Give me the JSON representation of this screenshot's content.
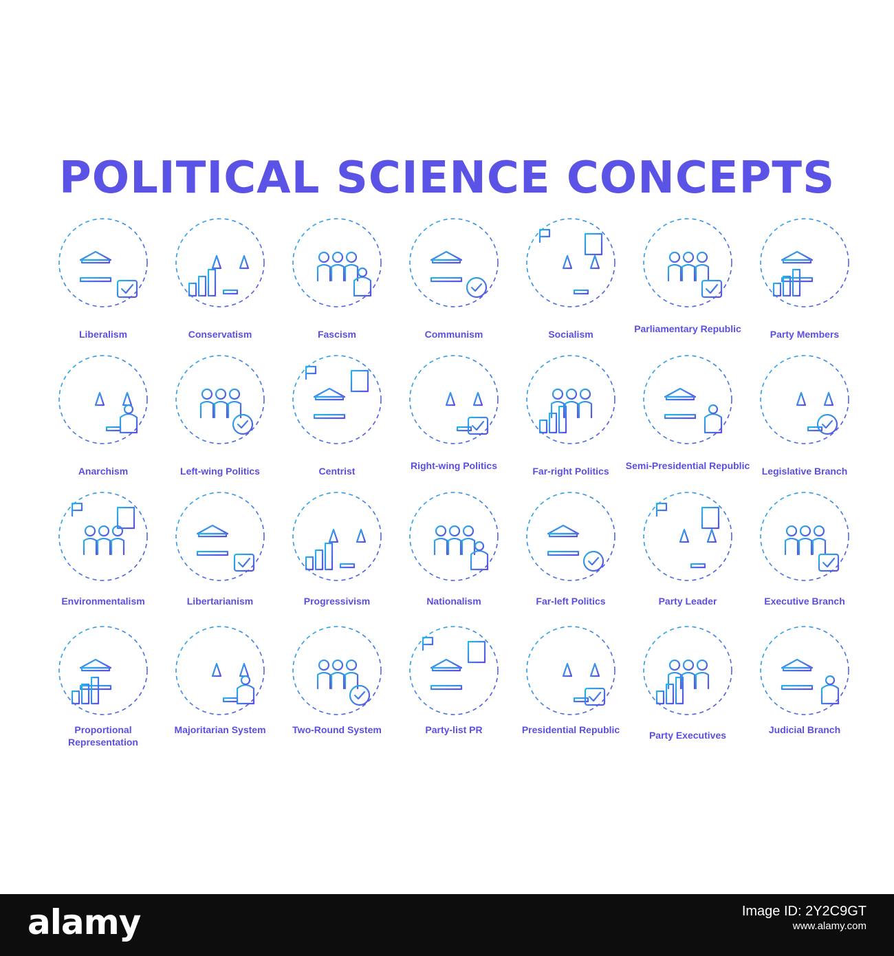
{
  "title": "POLITICAL SCIENCE CONCEPTS",
  "colors": {
    "title": "#5b52e6",
    "icon_start": "#27b4e8",
    "icon_end": "#5a4fe0",
    "label": "#5a4fe0",
    "footer_bg": "#0d0d0d"
  },
  "rows": [
    [
      {
        "label": "Liberalism",
        "icon": "liberalism-icon"
      },
      {
        "label": "Conservatism",
        "icon": "conservatism-icon"
      },
      {
        "label": "Fascism",
        "icon": "fascism-icon"
      },
      {
        "label": "Communism",
        "icon": "communism-icon"
      },
      {
        "label": "Socialism",
        "icon": "socialism-icon"
      },
      {
        "label": "Parliamentary Republic",
        "icon": "parliamentary-republic-icon"
      },
      {
        "label": "Party Members",
        "icon": "party-members-icon"
      }
    ],
    [
      {
        "label": "Anarchism",
        "icon": "anarchism-icon"
      },
      {
        "label": "Left-wing Politics",
        "icon": "left-wing-politics-icon"
      },
      {
        "label": "Centrist",
        "icon": "centrist-icon"
      },
      {
        "label": "Right-wing Politics",
        "icon": "right-wing-politics-icon"
      },
      {
        "label": "Far-right Politics",
        "icon": "far-right-politics-icon"
      },
      {
        "label": "Semi-Presidential Republic",
        "icon": "semi-presidential-republic-icon"
      },
      {
        "label": "Legislative Branch",
        "icon": "legislative-branch-icon"
      }
    ],
    [
      {
        "label": "Environmentalism",
        "icon": "environmentalism-icon"
      },
      {
        "label": "Libertarianism",
        "icon": "libertarianism-icon"
      },
      {
        "label": "Progressivism",
        "icon": "progressivism-icon"
      },
      {
        "label": "Nationalism",
        "icon": "nationalism-icon"
      },
      {
        "label": "Far-left Politics",
        "icon": "far-left-politics-icon"
      },
      {
        "label": "Party Leader",
        "icon": "party-leader-icon"
      },
      {
        "label": "Executive Branch",
        "icon": "executive-branch-icon"
      }
    ],
    [
      {
        "label": "Proportional Representation",
        "icon": "proportional-representation-icon"
      },
      {
        "label": "Majoritarian System",
        "icon": "majoritarian-system-icon"
      },
      {
        "label": "Two-Round System",
        "icon": "two-round-system-icon"
      },
      {
        "label": "Party-list PR",
        "icon": "party-list-pr-icon"
      },
      {
        "label": "Presidential Republic",
        "icon": "presidential-republic-icon"
      },
      {
        "label": "Party Executives",
        "icon": "party-executives-icon"
      },
      {
        "label": "Judicial Branch",
        "icon": "judicial-branch-icon"
      }
    ]
  ],
  "footer": {
    "brand": "alamy",
    "image_id_line": "Image ID: 2Y2C9GT",
    "site": "www.alamy.com"
  }
}
